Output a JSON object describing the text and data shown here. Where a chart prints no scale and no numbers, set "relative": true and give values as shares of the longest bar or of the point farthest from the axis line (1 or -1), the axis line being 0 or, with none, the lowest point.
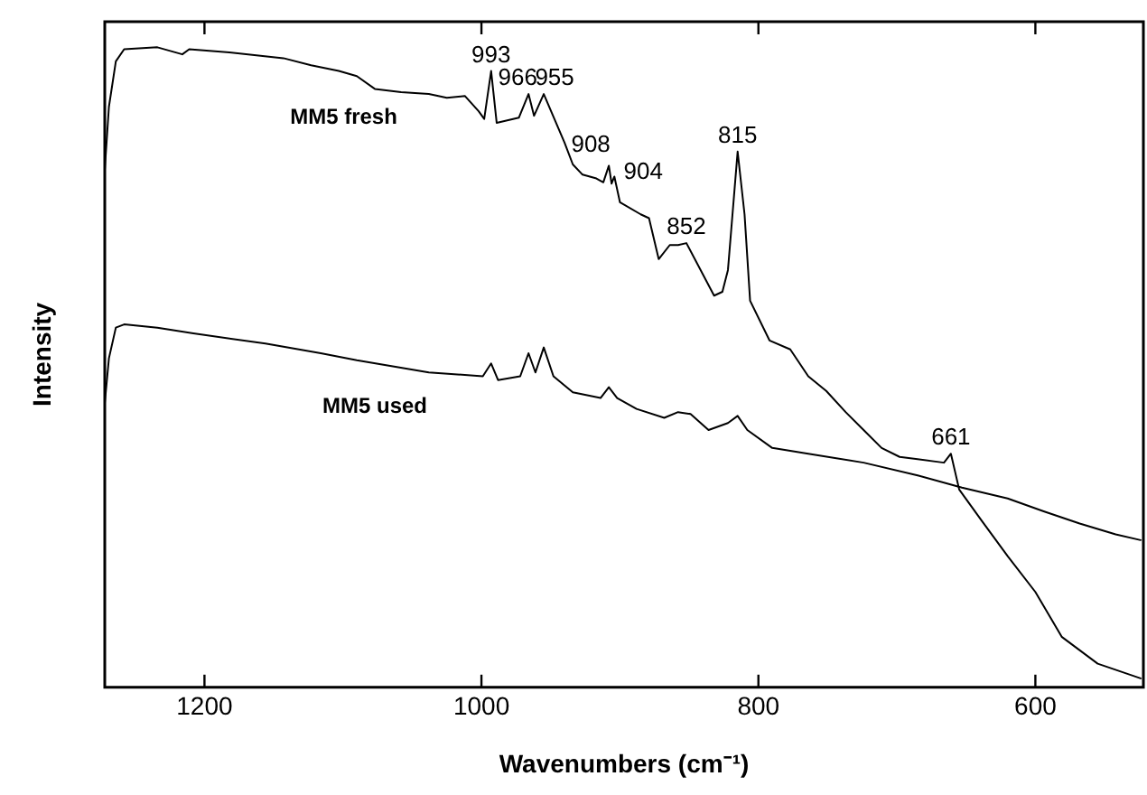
{
  "chart_data": {
    "type": "line",
    "relative": true,
    "xlabel": "Wavenumbers (cm⁻¹)",
    "ylabel": "Intensity",
    "xlim": [
      1272,
      522
    ],
    "xticks": [
      1200,
      1000,
      800,
      600
    ],
    "grid": false,
    "legend": false,
    "marker": "none",
    "line_style": "solid",
    "annotations": [
      {
        "text": "993",
        "x": 993,
        "y": 0.963
      },
      {
        "text": "966",
        "x": 966,
        "y": 0.927
      },
      {
        "text": "955",
        "x": 955,
        "y": 0.927
      },
      {
        "text": "908",
        "x": 908,
        "y": 0.815
      },
      {
        "text": "904",
        "x": 904,
        "y": 0.798
      },
      {
        "text": "852",
        "x": 852,
        "y": 0.694
      },
      {
        "text": "815",
        "x": 815,
        "y": 0.837
      },
      {
        "text": "661",
        "x": 661,
        "y": 0.365
      }
    ],
    "series": [
      {
        "name": "MM5 fresh",
        "color": "#000000",
        "x": [
          1272,
          1269,
          1264,
          1258,
          1234,
          1216,
          1211,
          1182,
          1143,
          1123,
          1103,
          1090,
          1077,
          1058,
          1038,
          1025,
          1012,
          1002,
          998,
          993,
          989,
          973,
          966,
          962,
          955,
          940,
          934,
          927,
          917,
          912,
          908,
          906,
          904,
          900,
          885,
          879,
          872,
          864,
          858,
          852,
          832,
          826,
          822,
          815,
          810,
          806,
          792,
          777,
          764,
          751,
          737,
          724,
          711,
          698,
          666,
          661,
          655,
          639,
          620,
          600,
          581,
          555,
          524
        ],
        "values": [
          0.809,
          0.907,
          0.978,
          0.997,
          1.0,
          0.989,
          0.997,
          0.992,
          0.983,
          0.972,
          0.963,
          0.955,
          0.935,
          0.93,
          0.927,
          0.921,
          0.924,
          0.9,
          0.888,
          0.963,
          0.882,
          0.89,
          0.927,
          0.893,
          0.927,
          0.851,
          0.817,
          0.801,
          0.795,
          0.789,
          0.815,
          0.787,
          0.798,
          0.758,
          0.739,
          0.733,
          0.669,
          0.691,
          0.691,
          0.694,
          0.612,
          0.618,
          0.652,
          0.837,
          0.739,
          0.604,
          0.542,
          0.528,
          0.486,
          0.463,
          0.43,
          0.402,
          0.374,
          0.36,
          0.351,
          0.365,
          0.309,
          0.261,
          0.205,
          0.149,
          0.079,
          0.037,
          0.014
        ]
      },
      {
        "name": "MM5 used",
        "color": "#000000",
        "x": [
          1272,
          1269,
          1264,
          1258,
          1234,
          1208,
          1156,
          1116,
          1090,
          1038,
          999,
          993,
          988,
          972,
          966,
          961,
          955,
          948,
          934,
          914,
          908,
          902,
          888,
          868,
          858,
          849,
          836,
          822,
          815,
          808,
          790,
          764,
          724,
          685,
          653,
          620,
          594,
          568,
          542,
          524
        ],
        "values": [
          0.444,
          0.514,
          0.562,
          0.567,
          0.562,
          0.553,
          0.537,
          0.522,
          0.511,
          0.492,
          0.486,
          0.506,
          0.48,
          0.486,
          0.522,
          0.492,
          0.531,
          0.486,
          0.461,
          0.452,
          0.469,
          0.452,
          0.435,
          0.421,
          0.43,
          0.427,
          0.402,
          0.413,
          0.424,
          0.402,
          0.374,
          0.365,
          0.351,
          0.331,
          0.312,
          0.295,
          0.275,
          0.256,
          0.239,
          0.23
        ]
      }
    ]
  }
}
